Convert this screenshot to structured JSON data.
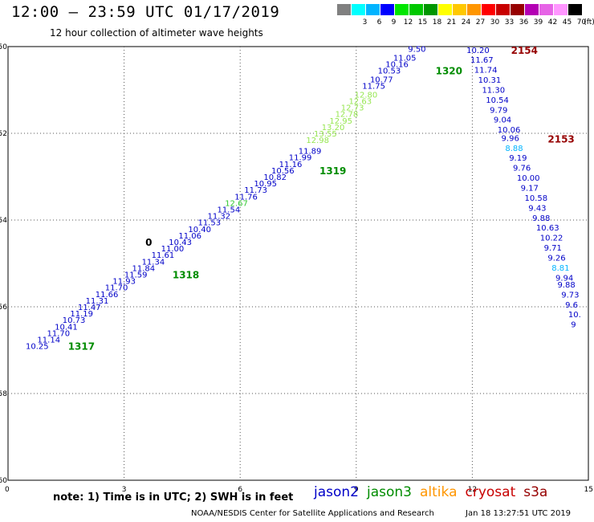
{
  "header": {
    "title": "12:00 – 23:59 UTC 01/17/2019",
    "subtitle": "12 hour collection of altimeter wave heights"
  },
  "scale": {
    "unit": "(ft)",
    "colors": [
      "#808080",
      "#00ffff",
      "#00b4ff",
      "#0000ff",
      "#00e600",
      "#00c800",
      "#009600",
      "#ffff00",
      "#ffc800",
      "#ff9600",
      "#ff0000",
      "#c80000",
      "#960000",
      "#b400b4",
      "#e664e6",
      "#ff96ff",
      "#000000"
    ],
    "labels": [
      "",
      "3",
      "6",
      "9",
      "12",
      "15",
      "18",
      "21",
      "24",
      "27",
      "30",
      "33",
      "36",
      "39",
      "42",
      "45",
      "70"
    ]
  },
  "chart_data": {
    "type": "scatter",
    "x_ticks": [
      0,
      3,
      6,
      9,
      12,
      15
    ],
    "y_ticks": [
      "-50",
      "-52",
      "-54",
      "-56",
      "-58",
      "-60"
    ],
    "passes": [
      {
        "label": "1317",
        "color": "#008c00",
        "at": [
          1.55,
          -56.9
        ]
      },
      {
        "label": "1318",
        "color": "#008c00",
        "at": [
          4.25,
          -55.25
        ]
      },
      {
        "label": "1319",
        "color": "#008c00",
        "at": [
          8.05,
          -52.85
        ]
      },
      {
        "label": "1320",
        "color": "#008c00",
        "at": [
          11.05,
          -50.55
        ]
      },
      {
        "label": "2154",
        "color": "#960000",
        "at": [
          13.0,
          -50.07
        ]
      },
      {
        "label": "2153",
        "color": "#960000",
        "at": [
          13.95,
          -52.12
        ]
      },
      {
        "label": "0",
        "color": "#000000",
        "at": [
          3.55,
          -54.5
        ]
      }
    ],
    "tracks": [
      {
        "name": "jason2",
        "anchor": "end",
        "points": [
          {
            "x": 1.05,
            "y": -56.9,
            "v": "10.25",
            "c": "#0000c8"
          },
          {
            "x": 1.35,
            "y": -56.75,
            "v": "11.14",
            "c": "#0000c8"
          },
          {
            "x": 1.6,
            "y": -56.6,
            "v": "11.70",
            "c": "#0000c8"
          },
          {
            "x": 1.8,
            "y": -56.45,
            "v": "10.41",
            "c": "#0000c8"
          },
          {
            "x": 2.0,
            "y": -56.3,
            "v": "10.73",
            "c": "#0000c8"
          },
          {
            "x": 2.2,
            "y": -56.15,
            "v": "11.19",
            "c": "#0000c8"
          },
          {
            "x": 2.4,
            "y": -56.0,
            "v": "11.47",
            "c": "#0000c8"
          },
          {
            "x": 2.6,
            "y": -55.85,
            "v": "11.31",
            "c": "#0000c8"
          },
          {
            "x": 2.85,
            "y": -55.7,
            "v": "11.66",
            "c": "#0000c8"
          },
          {
            "x": 3.1,
            "y": -55.55,
            "v": "11.70",
            "c": "#0000c8"
          },
          {
            "x": 3.3,
            "y": -55.4,
            "v": "11.93",
            "c": "#0000c8"
          },
          {
            "x": 3.6,
            "y": -55.25,
            "v": "11.59",
            "c": "#0000c8"
          },
          {
            "x": 3.8,
            "y": -55.1,
            "v": "11.84",
            "c": "#0000c8"
          },
          {
            "x": 4.05,
            "y": -54.95,
            "v": "11.34",
            "c": "#0000c8"
          },
          {
            "x": 4.3,
            "y": -54.8,
            "v": "11.61",
            "c": "#0000c8"
          },
          {
            "x": 4.55,
            "y": -54.65,
            "v": "11.00",
            "c": "#0000c8"
          },
          {
            "x": 4.75,
            "y": -54.5,
            "v": "10.43",
            "c": "#0000c8"
          },
          {
            "x": 5.0,
            "y": -54.35,
            "v": "11.06",
            "c": "#0000c8"
          },
          {
            "x": 5.25,
            "y": -54.2,
            "v": "10.40",
            "c": "#0000c8"
          },
          {
            "x": 5.5,
            "y": -54.05,
            "v": "11.53",
            "c": "#0000c8"
          },
          {
            "x": 5.75,
            "y": -53.9,
            "v": "11.32",
            "c": "#0000c8"
          },
          {
            "x": 6.0,
            "y": -53.75,
            "v": "11.54",
            "c": "#0000c8"
          },
          {
            "x": 6.2,
            "y": -53.6,
            "v": "12.67",
            "c": "#32c832"
          },
          {
            "x": 6.45,
            "y": -53.45,
            "v": "11.76",
            "c": "#0000c8"
          },
          {
            "x": 6.7,
            "y": -53.3,
            "v": "11.73",
            "c": "#0000c8"
          },
          {
            "x": 6.95,
            "y": -53.15,
            "v": "10.95",
            "c": "#0000c8"
          },
          {
            "x": 7.2,
            "y": -53.0,
            "v": "10.82",
            "c": "#0000c8"
          },
          {
            "x": 7.4,
            "y": -52.85,
            "v": "10.56",
            "c": "#0000c8"
          },
          {
            "x": 7.6,
            "y": -52.7,
            "v": "11.16",
            "c": "#0000c8"
          },
          {
            "x": 7.85,
            "y": -52.55,
            "v": "11.99",
            "c": "#0000c8"
          },
          {
            "x": 8.1,
            "y": -52.4,
            "v": "11.89",
            "c": "#0000c8"
          },
          {
            "x": 8.3,
            "y": -52.15,
            "v": "12.98",
            "c": "#96e650"
          },
          {
            "x": 8.5,
            "y": -52.0,
            "v": "13.55",
            "c": "#96e650"
          },
          {
            "x": 8.7,
            "y": -51.85,
            "v": "13.20",
            "c": "#96e650"
          },
          {
            "x": 8.9,
            "y": -51.7,
            "v": "12.95",
            "c": "#96e650"
          },
          {
            "x": 9.05,
            "y": -51.55,
            "v": "12.78",
            "c": "#96e650"
          },
          {
            "x": 9.2,
            "y": -51.4,
            "v": "12.73",
            "c": "#96e650"
          },
          {
            "x": 9.4,
            "y": -51.25,
            "v": "12.63",
            "c": "#96e650"
          },
          {
            "x": 9.55,
            "y": -51.1,
            "v": "12.80",
            "c": "#96e650"
          },
          {
            "x": 9.75,
            "y": -50.9,
            "v": "11.75",
            "c": "#0000c8"
          },
          {
            "x": 9.95,
            "y": -50.75,
            "v": "10.77",
            "c": "#0000c8"
          },
          {
            "x": 10.15,
            "y": -50.55,
            "v": "10.53",
            "c": "#0000c8"
          },
          {
            "x": 10.35,
            "y": -50.4,
            "v": "10.16",
            "c": "#0000c8"
          },
          {
            "x": 10.55,
            "y": -50.25,
            "v": "11.05",
            "c": "#0000c8"
          },
          {
            "x": 10.8,
            "y": -50.05,
            "v": "9.50",
            "c": "#0000c8"
          }
        ]
      },
      {
        "name": "cryosat",
        "anchor": "start",
        "points": [
          {
            "x": 11.85,
            "y": -50.07,
            "v": "10.20",
            "c": "#0000c8"
          },
          {
            "x": 11.95,
            "y": -50.3,
            "v": "11.67",
            "c": "#0000c8"
          },
          {
            "x": 12.05,
            "y": -50.53,
            "v": "11.74",
            "c": "#0000c8"
          },
          {
            "x": 12.15,
            "y": -50.76,
            "v": "10.31",
            "c": "#0000c8"
          },
          {
            "x": 12.25,
            "y": -50.99,
            "v": "11.30",
            "c": "#0000c8"
          },
          {
            "x": 12.35,
            "y": -51.22,
            "v": "10.54",
            "c": "#0000c8"
          },
          {
            "x": 12.45,
            "y": -51.45,
            "v": "9.79",
            "c": "#0000c8"
          },
          {
            "x": 12.55,
            "y": -51.68,
            "v": "9.04",
            "c": "#0000c8"
          },
          {
            "x": 12.65,
            "y": -51.91,
            "v": "10.06",
            "c": "#0000c8"
          },
          {
            "x": 12.75,
            "y": -52.1,
            "v": "9.96",
            "c": "#0000c8"
          },
          {
            "x": 12.85,
            "y": -52.33,
            "v": "8.88",
            "c": "#00b4ff"
          },
          {
            "x": 12.95,
            "y": -52.56,
            "v": "9.19",
            "c": "#0000c8"
          },
          {
            "x": 13.05,
            "y": -52.79,
            "v": "9.76",
            "c": "#0000c8"
          },
          {
            "x": 13.15,
            "y": -53.02,
            "v": "10.00",
            "c": "#0000c8"
          },
          {
            "x": 13.25,
            "y": -53.25,
            "v": "9.17",
            "c": "#0000c8"
          },
          {
            "x": 13.35,
            "y": -53.48,
            "v": "10.58",
            "c": "#0000c8"
          },
          {
            "x": 13.45,
            "y": -53.71,
            "v": "9.43",
            "c": "#0000c8"
          },
          {
            "x": 13.55,
            "y": -53.94,
            "v": "9.88",
            "c": "#0000c8"
          },
          {
            "x": 13.65,
            "y": -54.17,
            "v": "10.63",
            "c": "#0000c8"
          },
          {
            "x": 13.75,
            "y": -54.4,
            "v": "10.22",
            "c": "#0000c8"
          },
          {
            "x": 13.85,
            "y": -54.63,
            "v": "9.71",
            "c": "#0000c8"
          },
          {
            "x": 13.95,
            "y": -54.86,
            "v": "9.26",
            "c": "#0000c8"
          },
          {
            "x": 14.05,
            "y": -55.09,
            "v": "8.81",
            "c": "#00b4ff"
          },
          {
            "x": 14.15,
            "y": -55.32,
            "v": "9.94",
            "c": "#0000c8"
          },
          {
            "x": 14.2,
            "y": -55.48,
            "v": "9.88",
            "c": "#0000c8"
          },
          {
            "x": 14.3,
            "y": -55.71,
            "v": "9.73",
            "c": "#0000c8"
          },
          {
            "x": 14.4,
            "y": -55.94,
            "v": "9.6",
            "c": "#0000c8"
          },
          {
            "x": 14.48,
            "y": -56.17,
            "v": "10.",
            "c": "#0000c8"
          },
          {
            "x": 14.55,
            "y": -56.4,
            "v": "9",
            "c": "#0000c8"
          }
        ]
      }
    ]
  },
  "footer": {
    "note": "note:  1) Time is in UTC;  2) SWH is in feet",
    "legend": [
      {
        "name": "jason2",
        "color": "#0000c8"
      },
      {
        "name": "jason3",
        "color": "#008c00"
      },
      {
        "name": "altika",
        "color": "#ff9600"
      },
      {
        "name": "cryosat",
        "color": "#c80000"
      },
      {
        "name": "s3a",
        "color": "#960000"
      }
    ],
    "credit": "NOAA/NESDIS Center for Satellite Applications and Research",
    "timestamp": "Jan 18 13:27:51 UTC 2019"
  }
}
